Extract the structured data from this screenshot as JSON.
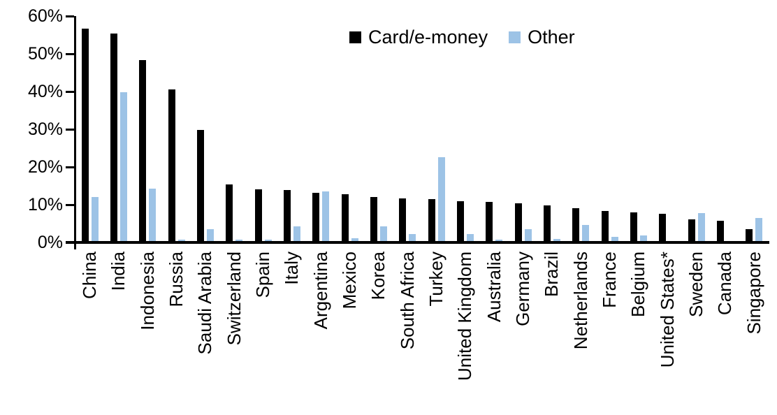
{
  "chart_data": {
    "type": "bar",
    "title": "",
    "xlabel": "",
    "ylabel": "",
    "ylim": [
      0,
      60
    ],
    "ytick_step": 10,
    "ytick_labels": [
      "0%",
      "10%",
      "20%",
      "30%",
      "40%",
      "50%",
      "60%"
    ],
    "grid": false,
    "legend_position": "top-center",
    "categories": [
      "China",
      "India",
      "Indonesia",
      "Russia",
      "Saudi Arabia",
      "Switzerland",
      "Spain",
      "Italy",
      "Argentina",
      "Mexico",
      "Korea",
      "South Africa",
      "Turkey",
      "United Kingdom",
      "Australia",
      "Germany",
      "Brazil",
      "Netherlands",
      "France",
      "Belgium",
      "United States*",
      "Sweden",
      "Canada",
      "Singapore"
    ],
    "series": [
      {
        "name": "Card/e-money",
        "color": "#000000",
        "values": [
          56.6,
          55.4,
          48.4,
          40.6,
          29.8,
          15.4,
          14.1,
          13.9,
          13.1,
          12.7,
          12.1,
          11.6,
          11.4,
          10.9,
          10.7,
          10.3,
          9.9,
          9.0,
          8.4,
          7.9,
          7.6,
          6.2,
          5.7,
          3.6
        ]
      },
      {
        "name": "Other",
        "color": "#9dc3e6",
        "values": [
          12.0,
          39.8,
          14.3,
          0.8,
          3.6,
          0.7,
          0.8,
          4.3,
          13.5,
          1.1,
          4.3,
          2.2,
          22.6,
          2.2,
          0.8,
          3.6,
          1.0,
          4.7,
          1.4,
          1.8,
          0.3,
          7.8,
          0.0,
          6.4
        ]
      }
    ]
  }
}
